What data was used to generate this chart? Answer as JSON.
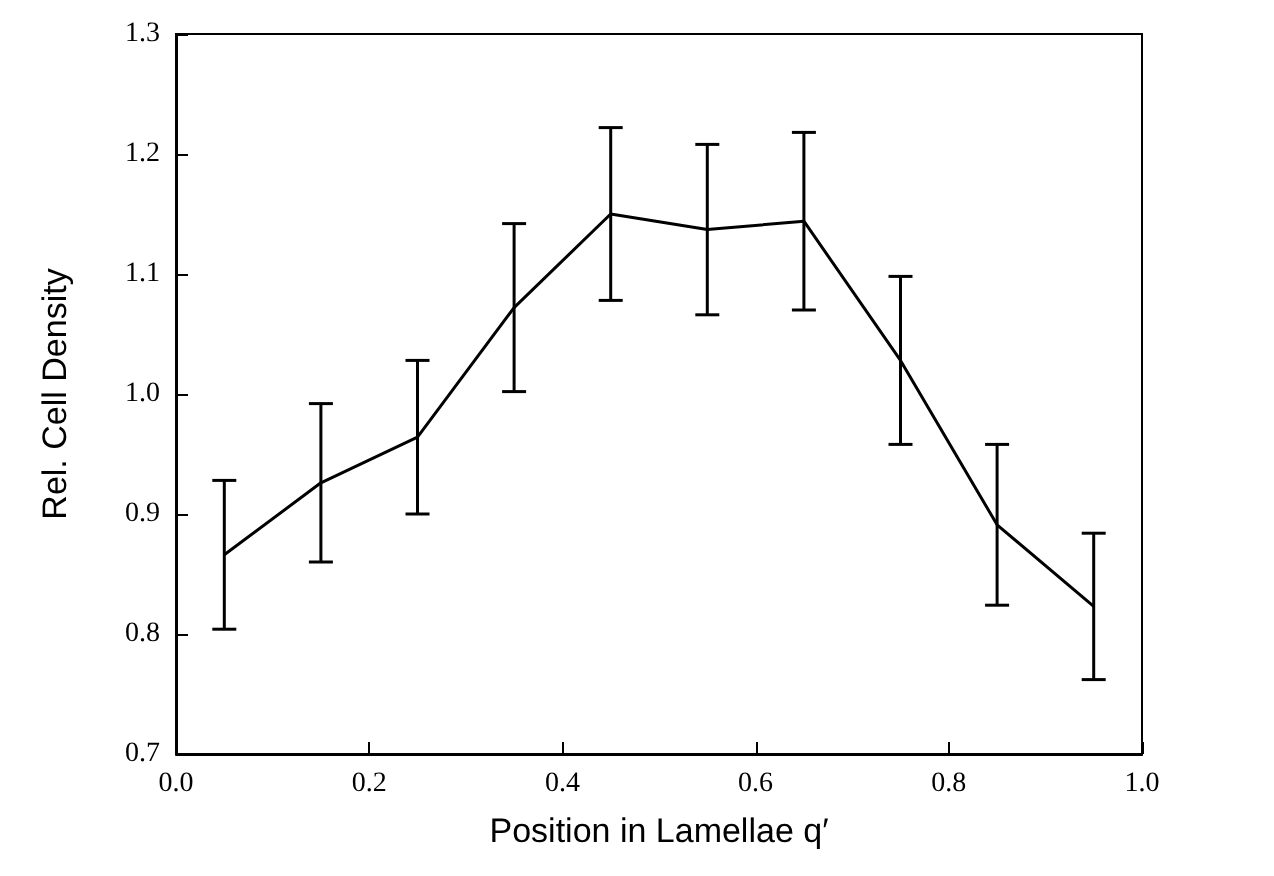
{
  "chart_data": {
    "type": "line",
    "xlabel": "Position in Lamellae q′",
    "ylabel": "Rel. Cell Density",
    "x": [
      0.05,
      0.15,
      0.25,
      0.35,
      0.45,
      0.55,
      0.65,
      0.75,
      0.85,
      0.95
    ],
    "series": [
      {
        "color": "#000000",
        "values": [
          0.866,
          0.926,
          0.964,
          1.072,
          1.15,
          1.137,
          1.144,
          1.028,
          0.891,
          0.823
        ],
        "errors": [
          0.062,
          0.066,
          0.064,
          0.07,
          0.072,
          0.071,
          0.074,
          0.07,
          0.067,
          0.061
        ]
      }
    ],
    "xlim": [
      0,
      1
    ],
    "xticks": [
      {
        "value": 0,
        "label": "0.0"
      },
      {
        "value": 0.2,
        "label": "0.2"
      },
      {
        "value": 0.4,
        "label": "0.4"
      },
      {
        "value": 0.6,
        "label": "0.6"
      },
      {
        "value": 0.8,
        "label": "0.8"
      },
      {
        "value": 1,
        "label": "1.0"
      }
    ],
    "ylim": [
      0.7,
      1.3
    ],
    "yticks": [
      {
        "value": 0.7,
        "label": "0.7"
      },
      {
        "value": 0.8,
        "label": "0.8"
      },
      {
        "value": 0.9,
        "label": "0.9"
      },
      {
        "value": 1,
        "label": "1.0"
      },
      {
        "value": 1.1,
        "label": "1.1"
      },
      {
        "value": 1.2,
        "label": "1.2"
      },
      {
        "value": 1.3,
        "label": "1.3"
      }
    ],
    "grid": false,
    "marker": "none",
    "line_style": "solid"
  }
}
